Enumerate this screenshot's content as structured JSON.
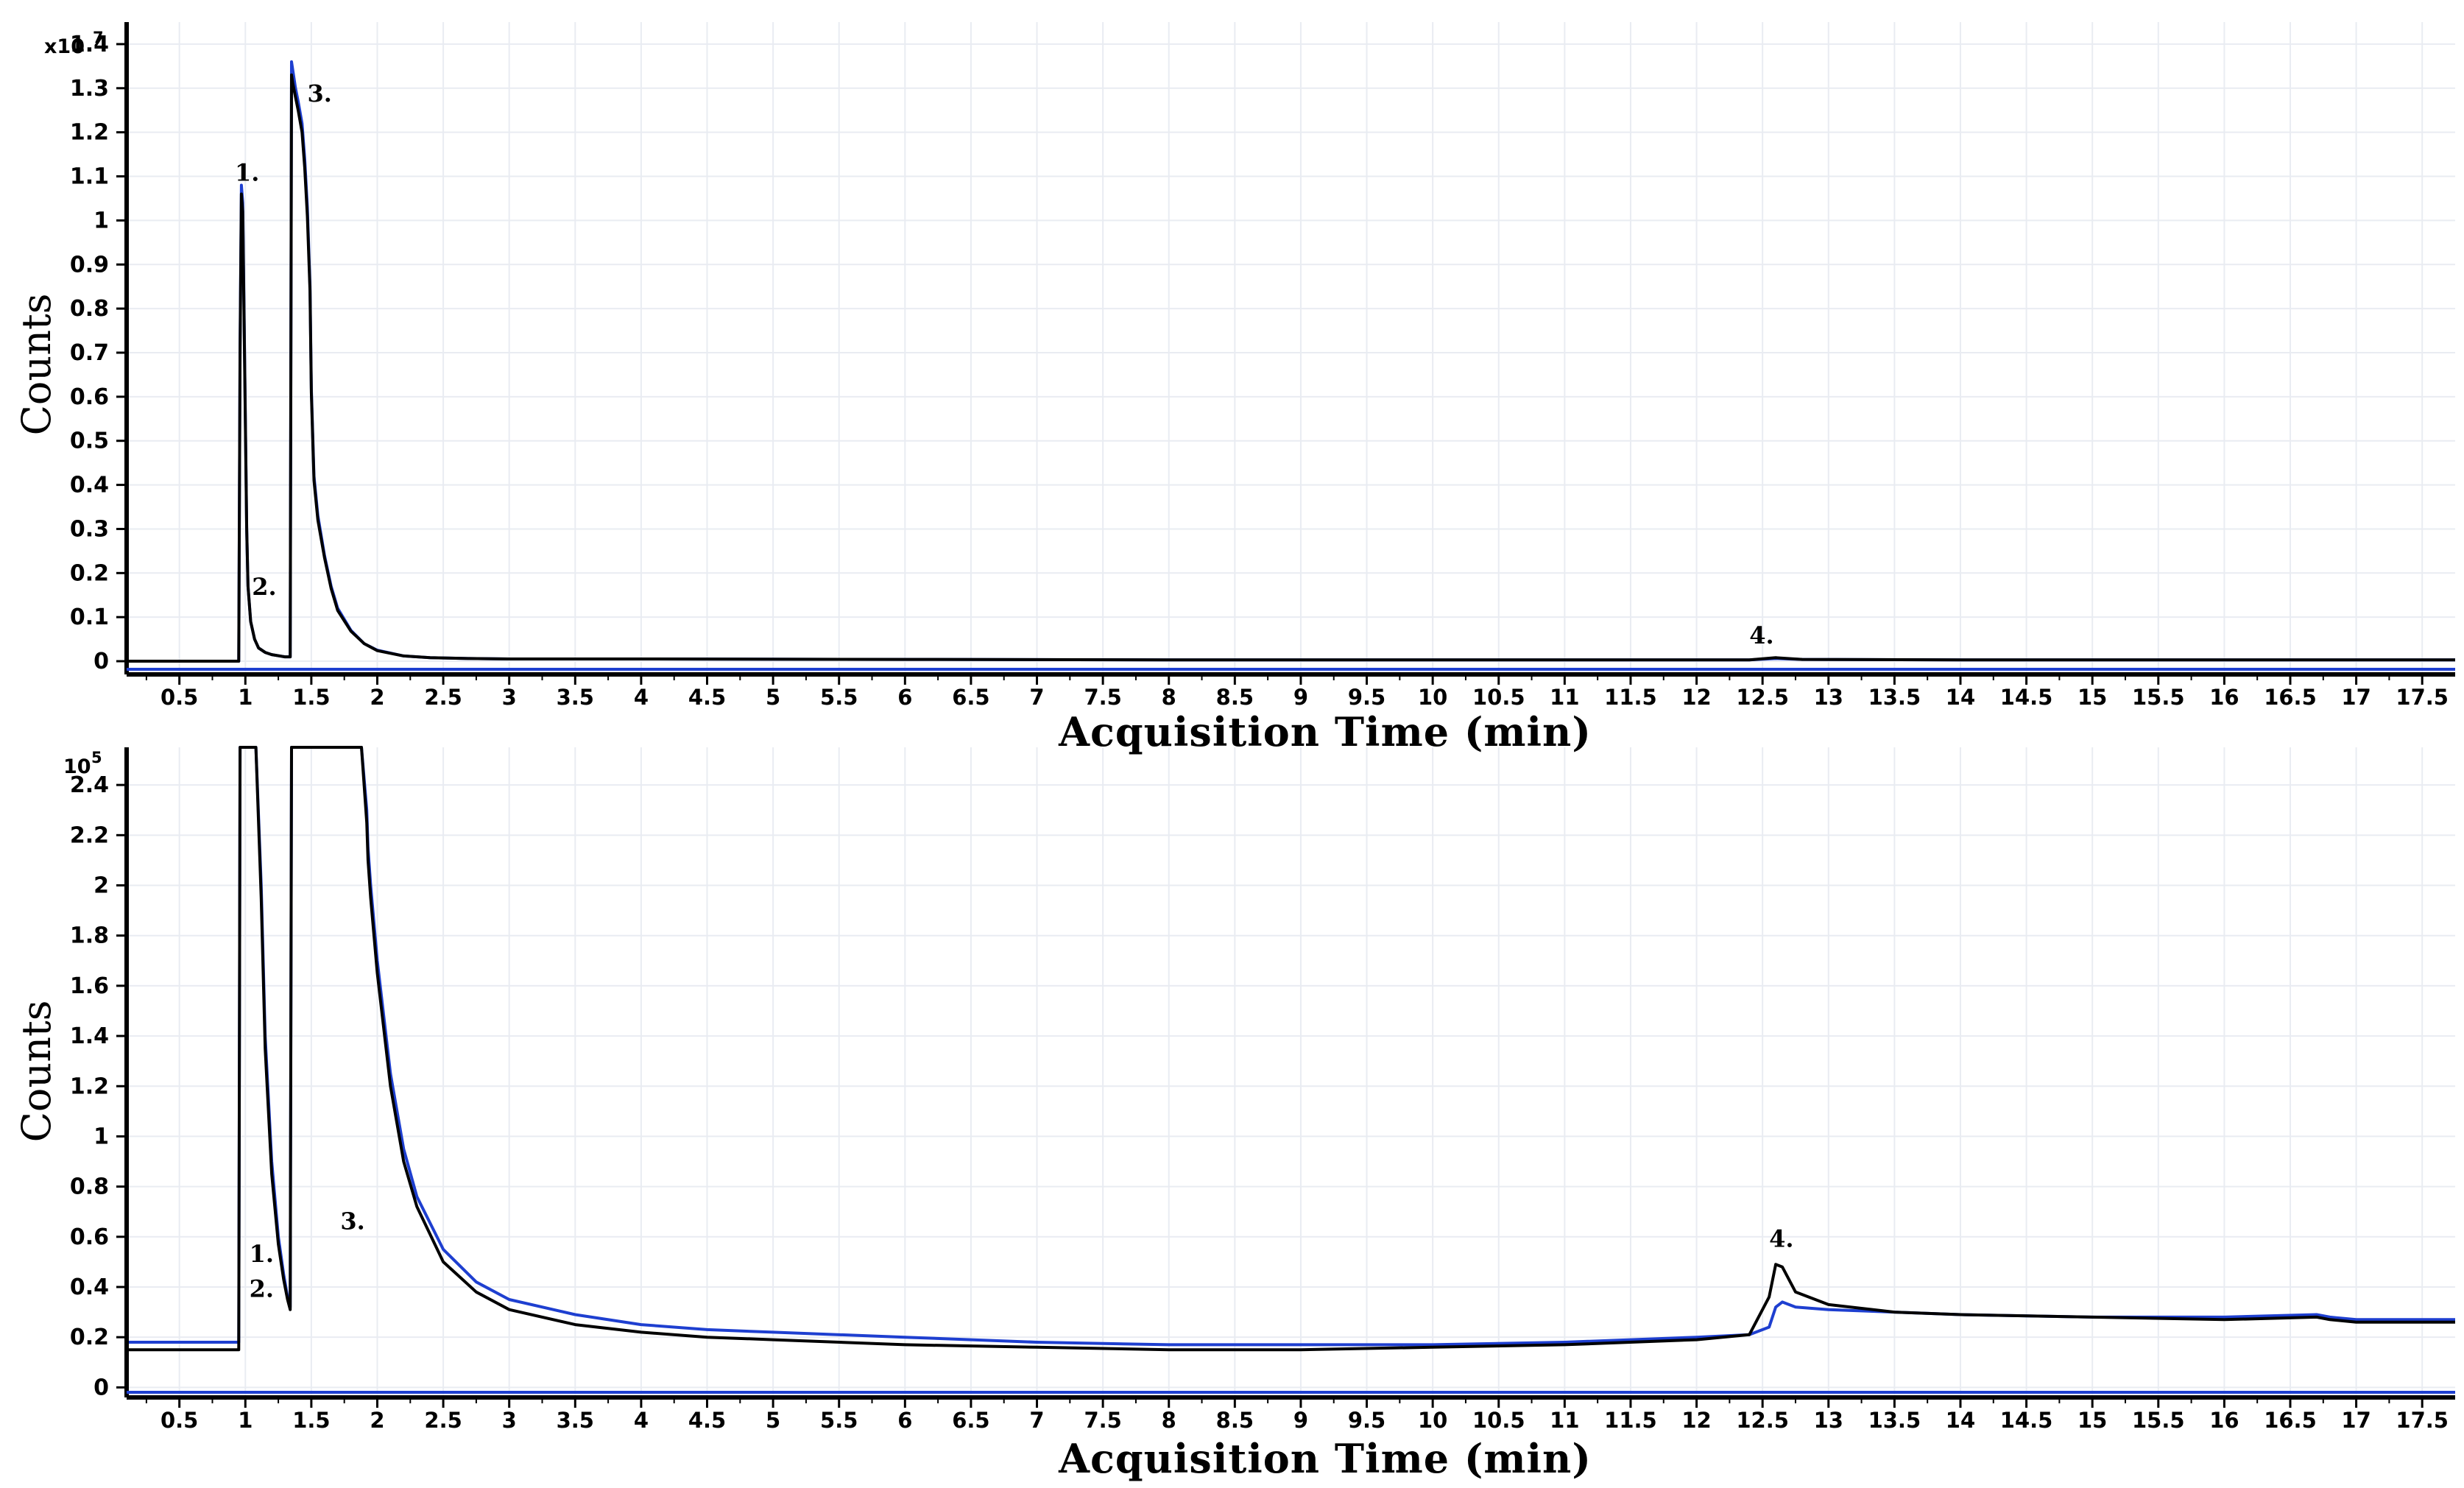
{
  "chart_data": [
    {
      "type": "line",
      "panel": "top",
      "ylabel": "Counts",
      "xlabel": "Acquisition Time (min)",
      "y_scale_label": "x10",
      "y_scale_exponent": "7",
      "xlim": [
        0.1,
        17.75
      ],
      "ylim": [
        -0.03,
        1.45
      ],
      "x_ticks": [
        "0.5",
        "1",
        "1.5",
        "2",
        "2.5",
        "3",
        "3.5",
        "4",
        "4.5",
        "5",
        "5.5",
        "6",
        "6.5",
        "7",
        "7.5",
        "8",
        "8.5",
        "9",
        "9.5",
        "10",
        "10.5",
        "11",
        "11.5",
        "12",
        "12.5",
        "13",
        "13.5",
        "14",
        "14.5",
        "15",
        "15.5",
        "16",
        "16.5",
        "17",
        "17.5"
      ],
      "y_ticks": [
        "0",
        "0.1",
        "0.2",
        "0.3",
        "0.4",
        "0.5",
        "0.6",
        "0.7",
        "0.8",
        "0.9",
        "1",
        "1.1",
        "1.2",
        "1.3",
        "1.4"
      ],
      "grid": true,
      "series": [
        {
          "color": "#1e3fd0",
          "x": [
            0.1,
            0.95,
            0.96,
            0.97,
            0.98,
            1.0,
            1.01,
            1.02,
            1.04,
            1.07,
            1.1,
            1.15,
            1.2,
            1.3,
            1.34,
            1.35,
            1.36,
            1.38,
            1.4,
            1.43,
            1.45,
            1.47,
            1.49,
            1.5,
            1.52,
            1.55,
            1.6,
            1.65,
            1.7,
            1.8,
            1.9,
            2.0,
            2.2,
            2.4,
            2.7,
            3.0,
            4.0,
            6.0,
            8.0,
            10.0,
            12.4,
            12.6,
            12.8,
            14.0,
            16.0,
            17.75
          ],
          "y": [
            0.0,
            0.0,
            0.72,
            1.08,
            1.04,
            0.55,
            0.3,
            0.17,
            0.09,
            0.05,
            0.03,
            0.02,
            0.015,
            0.01,
            0.01,
            1.36,
            1.34,
            1.3,
            1.27,
            1.22,
            1.14,
            1.03,
            0.85,
            0.62,
            0.42,
            0.33,
            0.24,
            0.17,
            0.12,
            0.07,
            0.04,
            0.025,
            0.012,
            0.008,
            0.006,
            0.005,
            0.005,
            0.004,
            0.003,
            0.003,
            0.003,
            0.006,
            0.004,
            0.003,
            0.003,
            0.003
          ]
        },
        {
          "color": "#000000",
          "x": [
            0.1,
            0.95,
            0.96,
            0.97,
            0.98,
            1.0,
            1.01,
            1.02,
            1.04,
            1.07,
            1.1,
            1.15,
            1.2,
            1.3,
            1.34,
            1.35,
            1.36,
            1.38,
            1.4,
            1.43,
            1.45,
            1.47,
            1.49,
            1.5,
            1.52,
            1.55,
            1.6,
            1.65,
            1.7,
            1.8,
            1.9,
            2.0,
            2.2,
            2.4,
            2.7,
            3.0,
            4.0,
            6.0,
            8.0,
            10.0,
            12.4,
            12.6,
            12.8,
            14.0,
            16.0,
            17.75
          ],
          "y": [
            0.0,
            0.0,
            0.7,
            1.06,
            1.02,
            0.54,
            0.3,
            0.17,
            0.09,
            0.05,
            0.03,
            0.02,
            0.015,
            0.01,
            0.01,
            1.33,
            1.31,
            1.28,
            1.25,
            1.2,
            1.12,
            1.01,
            0.84,
            0.61,
            0.41,
            0.32,
            0.235,
            0.165,
            0.115,
            0.068,
            0.04,
            0.024,
            0.012,
            0.008,
            0.006,
            0.005,
            0.005,
            0.004,
            0.003,
            0.003,
            0.003,
            0.008,
            0.004,
            0.003,
            0.003,
            0.003
          ]
        }
      ],
      "annotations": [
        {
          "text": "1.",
          "x": 0.92,
          "y": 1.09
        },
        {
          "text": "2.",
          "x": 1.05,
          "y": 0.15
        },
        {
          "text": "3.",
          "x": 1.47,
          "y": 1.27
        },
        {
          "text": "4.",
          "x": 12.4,
          "y": 0.04
        }
      ]
    },
    {
      "type": "line",
      "panel": "bottom",
      "ylabel": "Counts",
      "xlabel": "Acquisition Time (min)",
      "y_scale_label": "10",
      "y_scale_exponent": "5",
      "xlim": [
        0.1,
        17.75
      ],
      "ylim": [
        -0.04,
        2.55
      ],
      "x_ticks": [
        "0.5",
        "1",
        "1.5",
        "2",
        "2.5",
        "3",
        "3.5",
        "4",
        "4.5",
        "5",
        "5.5",
        "6",
        "6.5",
        "7",
        "7.5",
        "8",
        "8.5",
        "9",
        "9.5",
        "10",
        "10.5",
        "11",
        "11.5",
        "12",
        "12.5",
        "13",
        "13.5",
        "14",
        "14.5",
        "15",
        "15.5",
        "16",
        "16.5",
        "17",
        "17.5"
      ],
      "y_ticks": [
        "0",
        "0.2",
        "0.4",
        "0.6",
        "0.8",
        "1",
        "1.2",
        "1.4",
        "1.6",
        "1.8",
        "2",
        "2.2",
        "2.4"
      ],
      "grid": true,
      "series": [
        {
          "color": "#1e3fd0",
          "x": [
            0.1,
            0.95,
            0.96,
            0.97,
            1.08,
            1.12,
            1.15,
            1.2,
            1.25,
            1.29,
            1.32,
            1.34,
            1.35,
            1.36,
            1.88,
            1.92,
            1.93,
            1.95,
            2.0,
            2.1,
            2.2,
            2.3,
            2.5,
            2.75,
            3.0,
            3.5,
            4.0,
            4.5,
            5.0,
            6.0,
            7.0,
            8.0,
            9.0,
            10.0,
            11.0,
            12.0,
            12.4,
            12.55,
            12.6,
            12.65,
            12.75,
            13.0,
            13.5,
            14.0,
            15.0,
            16.0,
            16.7,
            16.8,
            17.0,
            17.75
          ],
          "y": [
            0.18,
            0.18,
            2.55,
            2.55,
            2.55,
            2.0,
            1.4,
            0.9,
            0.6,
            0.45,
            0.36,
            0.32,
            2.55,
            2.55,
            2.55,
            2.3,
            2.15,
            2.0,
            1.7,
            1.25,
            0.95,
            0.76,
            0.55,
            0.42,
            0.35,
            0.29,
            0.25,
            0.23,
            0.22,
            0.2,
            0.18,
            0.17,
            0.17,
            0.17,
            0.18,
            0.2,
            0.21,
            0.24,
            0.32,
            0.34,
            0.32,
            0.31,
            0.3,
            0.29,
            0.28,
            0.28,
            0.29,
            0.28,
            0.27,
            0.27
          ]
        },
        {
          "color": "#000000",
          "x": [
            0.1,
            0.95,
            0.96,
            0.97,
            1.08,
            1.12,
            1.15,
            1.2,
            1.25,
            1.29,
            1.32,
            1.34,
            1.35,
            1.36,
            1.88,
            1.92,
            1.93,
            1.95,
            2.0,
            2.1,
            2.2,
            2.3,
            2.5,
            2.75,
            3.0,
            3.5,
            4.0,
            4.5,
            5.0,
            6.0,
            7.0,
            8.0,
            9.0,
            10.0,
            11.0,
            12.0,
            12.4,
            12.55,
            12.6,
            12.65,
            12.75,
            13.0,
            13.5,
            14.0,
            15.0,
            16.0,
            16.7,
            16.8,
            17.0,
            17.75
          ],
          "y": [
            0.15,
            0.15,
            2.55,
            2.55,
            2.55,
            1.95,
            1.35,
            0.85,
            0.57,
            0.43,
            0.35,
            0.31,
            2.55,
            2.55,
            2.55,
            2.25,
            2.1,
            1.95,
            1.65,
            1.2,
            0.9,
            0.72,
            0.5,
            0.38,
            0.31,
            0.25,
            0.22,
            0.2,
            0.19,
            0.17,
            0.16,
            0.15,
            0.15,
            0.16,
            0.17,
            0.19,
            0.21,
            0.36,
            0.49,
            0.48,
            0.38,
            0.33,
            0.3,
            0.29,
            0.28,
            0.27,
            0.28,
            0.27,
            0.26,
            0.26
          ]
        }
      ],
      "annotations": [
        {
          "text": "1.",
          "x": 1.03,
          "y": 0.5
        },
        {
          "text": "2.",
          "x": 1.03,
          "y": 0.36
        },
        {
          "text": "3.",
          "x": 1.72,
          "y": 0.63
        },
        {
          "text": "4.",
          "x": 12.55,
          "y": 0.56
        }
      ]
    }
  ]
}
